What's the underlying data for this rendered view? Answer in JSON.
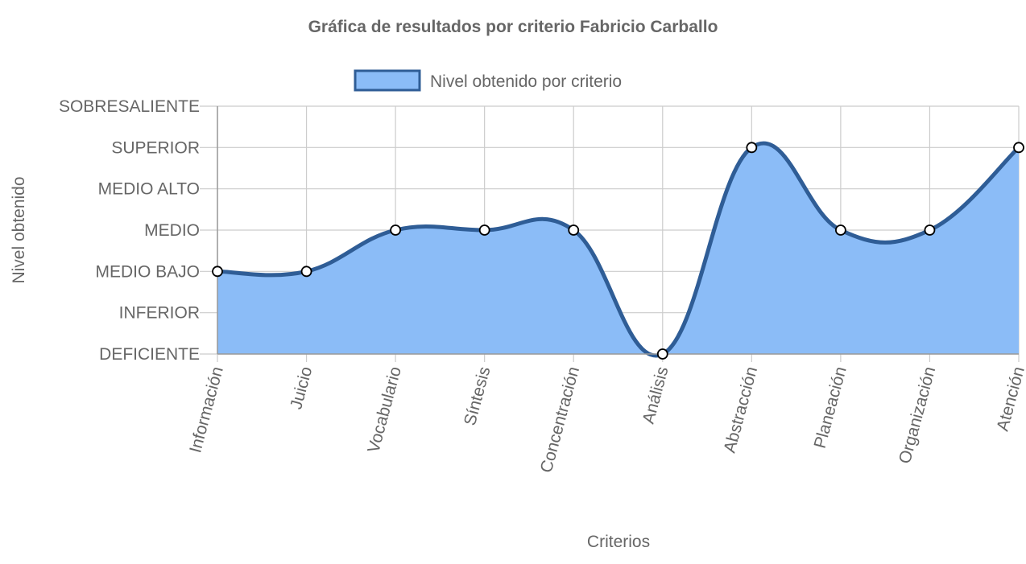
{
  "chart_data": {
    "type": "area",
    "title": "Gráfica de resultados por criterio Fabricio Carballo",
    "xlabel": "Criterios",
    "ylabel": "Nivel obtenido",
    "categories": [
      "Información",
      "Juicio",
      "Vocabulario",
      "Síntesis",
      "Concentración",
      "Análisis",
      "Abstracción",
      "Planeación",
      "Organización",
      "Atención"
    ],
    "y_levels": [
      "DEFICIENTE",
      "INFERIOR",
      "MEDIO BAJO",
      "MEDIO",
      "MEDIO ALTO",
      "SUPERIOR",
      "SOBRESALIENTE"
    ],
    "ylim": [
      0,
      6
    ],
    "series": [
      {
        "name": "Nivel obtenido por criterio",
        "values": [
          2,
          2,
          3,
          3,
          3,
          0,
          5,
          3,
          3,
          5
        ]
      }
    ],
    "legend_position": "top",
    "grid": true,
    "curve": "smooth",
    "colors": {
      "line": "#2f5d96",
      "fill": "#8bbcf7",
      "grid": "#cccccc",
      "text": "#666666",
      "point_fill": "#ffffff",
      "point_stroke": "#000000"
    }
  }
}
